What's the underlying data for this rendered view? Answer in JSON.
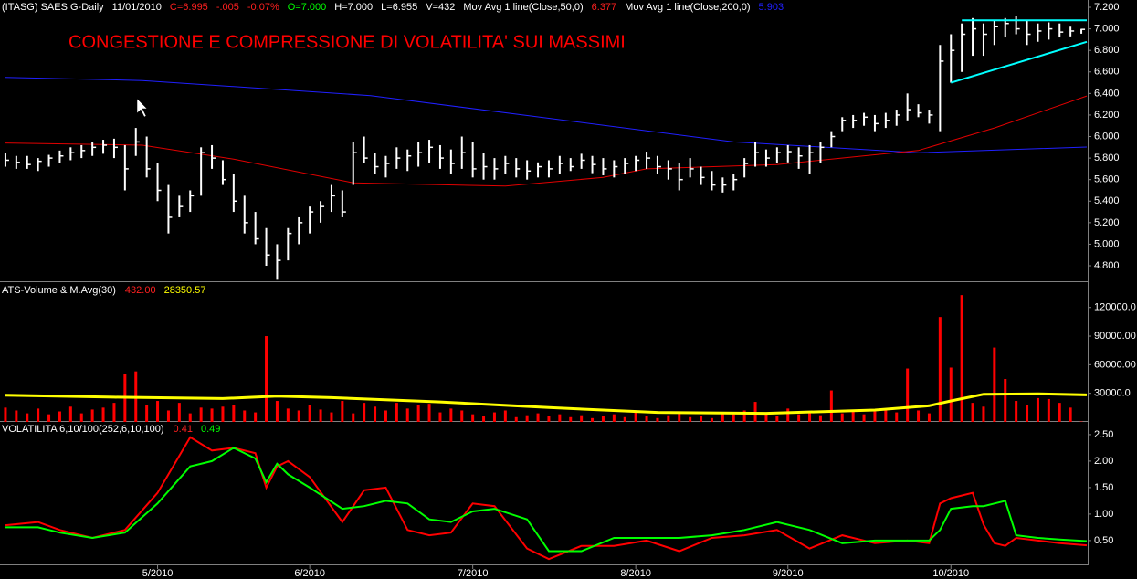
{
  "chart_data": [
    {
      "type": "ohlc",
      "info": [
        {
          "text": "(ITASG) SAES G-Daily",
          "color": "#ffffff"
        },
        {
          "text": "11/01/2010",
          "color": "#ffffff"
        },
        {
          "text": "C=6.995",
          "color": "#ff2020"
        },
        {
          "text": "-.005",
          "color": "#ff2020"
        },
        {
          "text": "-0.07%",
          "color": "#ff2020"
        },
        {
          "text": "O=7.000",
          "color": "#00ff00"
        },
        {
          "text": "H=7.000",
          "color": "#ffffff"
        },
        {
          "text": "L=6.955",
          "color": "#ffffff"
        },
        {
          "text": "V=432",
          "color": "#ffffff"
        },
        {
          "text": "Mov Avg 1 line(Close,50,0)",
          "color": "#ffffff"
        },
        {
          "text": "6.377",
          "color": "#ff2020"
        },
        {
          "text": "Mov Avg 1 line(Close,200,0)",
          "color": "#ffffff"
        },
        {
          "text": "5.903",
          "color": "#2020ff"
        }
      ],
      "annotation": {
        "text": "CONGESTIONE E COMPRESSIONE DI VOLATILITA' SUI MASSIMI",
        "color": "#ff0000"
      },
      "color": "#ffffff",
      "xlim": [
        -0.5,
        99.5
      ],
      "ylim": [
        4.656,
        7.268
      ],
      "yticks": [
        {
          "value": 4.8,
          "label": "4.800"
        },
        {
          "value": 5.0,
          "label": "5.000"
        },
        {
          "value": 5.2,
          "label": "5.200"
        },
        {
          "value": 5.4,
          "label": "5.400"
        },
        {
          "value": 5.6,
          "label": "5.600"
        },
        {
          "value": 5.8,
          "label": "5.800"
        },
        {
          "value": 6.0,
          "label": "6.000"
        },
        {
          "value": 6.2,
          "label": "6.200"
        },
        {
          "value": 6.4,
          "label": "6.400"
        },
        {
          "value": 6.6,
          "label": "6.600"
        },
        {
          "value": 6.8,
          "label": "6.800"
        },
        {
          "value": 7.0,
          "label": "7.000"
        },
        {
          "value": 7.2,
          "label": "7.200"
        }
      ],
      "high": [
        5.85,
        5.82,
        5.82,
        5.8,
        5.83,
        5.87,
        5.9,
        5.92,
        5.95,
        5.97,
        5.98,
        5.92,
        6.08,
        6.0,
        5.75,
        5.55,
        5.45,
        5.5,
        5.9,
        5.92,
        5.78,
        5.65,
        5.45,
        5.3,
        5.15,
        5.0,
        5.15,
        5.25,
        5.35,
        5.4,
        5.55,
        5.5,
        5.95,
        6.0,
        5.85,
        5.82,
        5.9,
        5.88,
        5.95,
        5.97,
        5.92,
        5.88,
        6.0,
        5.95,
        5.85,
        5.8,
        5.82,
        5.8,
        5.78,
        5.76,
        5.78,
        5.82,
        5.8,
        5.84,
        5.82,
        5.8,
        5.78,
        5.8,
        5.82,
        5.86,
        5.82,
        5.78,
        5.75,
        5.8,
        5.72,
        5.68,
        5.62,
        5.65,
        5.8,
        5.95,
        5.88,
        5.9,
        5.92,
        5.9,
        5.92,
        5.95,
        6.05,
        6.18,
        6.2,
        6.22,
        6.2,
        6.22,
        6.25,
        6.4,
        6.3,
        6.25,
        6.85,
        6.95,
        7.05,
        7.1,
        7.05,
        7.08,
        7.1,
        7.12,
        7.08,
        7.05,
        7.06,
        7.05,
        7.02,
        7.0
      ],
      "low": [
        5.72,
        5.7,
        5.7,
        5.68,
        5.72,
        5.75,
        5.78,
        5.8,
        5.82,
        5.84,
        5.8,
        5.5,
        5.82,
        5.62,
        5.4,
        5.1,
        5.25,
        5.3,
        5.45,
        5.7,
        5.55,
        5.3,
        5.1,
        5.0,
        4.8,
        4.67,
        4.85,
        5.0,
        5.1,
        5.2,
        5.3,
        5.25,
        5.55,
        5.75,
        5.65,
        5.62,
        5.7,
        5.68,
        5.72,
        5.75,
        5.7,
        5.65,
        5.7,
        5.62,
        5.6,
        5.6,
        5.65,
        5.62,
        5.6,
        5.62,
        5.62,
        5.65,
        5.68,
        5.7,
        5.66,
        5.64,
        5.62,
        5.65,
        5.68,
        5.7,
        5.65,
        5.6,
        5.5,
        5.62,
        5.55,
        5.5,
        5.48,
        5.5,
        5.62,
        5.72,
        5.72,
        5.75,
        5.76,
        5.7,
        5.65,
        5.75,
        5.9,
        6.05,
        6.08,
        6.1,
        6.05,
        6.08,
        6.1,
        6.15,
        6.18,
        6.12,
        6.05,
        6.5,
        6.6,
        6.75,
        6.75,
        6.85,
        6.92,
        6.95,
        6.85,
        6.88,
        6.9,
        6.92,
        6.93,
        6.955
      ],
      "close": [
        5.78,
        5.76,
        5.74,
        5.77,
        5.8,
        5.82,
        5.85,
        5.87,
        5.9,
        5.92,
        5.9,
        5.7,
        5.95,
        5.7,
        5.5,
        5.25,
        5.35,
        5.45,
        5.85,
        5.8,
        5.6,
        5.4,
        5.2,
        5.05,
        4.9,
        4.85,
        5.1,
        5.2,
        5.3,
        5.35,
        5.45,
        5.3,
        5.85,
        5.8,
        5.72,
        5.75,
        5.8,
        5.82,
        5.85,
        5.9,
        5.8,
        5.75,
        5.85,
        5.7,
        5.72,
        5.7,
        5.75,
        5.7,
        5.68,
        5.72,
        5.7,
        5.75,
        5.72,
        5.78,
        5.74,
        5.7,
        5.72,
        5.75,
        5.78,
        5.8,
        5.72,
        5.7,
        5.6,
        5.7,
        5.62,
        5.55,
        5.55,
        5.6,
        5.75,
        5.85,
        5.8,
        5.85,
        5.86,
        5.82,
        5.85,
        5.9,
        6.0,
        6.15,
        6.15,
        6.18,
        6.12,
        6.15,
        6.2,
        6.25,
        6.22,
        6.2,
        6.7,
        6.8,
        6.95,
        7.0,
        6.95,
        7.02,
        7.05,
        7.0,
        6.95,
        6.98,
        7.0,
        6.97,
        6.98,
        6.995
      ],
      "series": [
        {
          "color": "#2020ff",
          "x": [
            0,
            12.6,
            33.6,
            50,
            67,
            84,
            99.5
          ],
          "values": [
            6.55,
            6.52,
            6.38,
            6.17,
            5.95,
            5.85,
            5.903
          ]
        },
        {
          "color": "#e00000",
          "x": [
            0,
            12.6,
            21,
            32,
            46,
            55,
            59,
            71,
            84,
            91,
            99.5
          ],
          "values": [
            5.94,
            5.92,
            5.79,
            5.57,
            5.54,
            5.62,
            5.7,
            5.74,
            5.87,
            6.08,
            6.377
          ]
        }
      ],
      "trendlines": [
        {
          "color": "#00ffff",
          "x": [
            88,
            99.5
          ],
          "values": [
            7.08,
            7.08
          ]
        },
        {
          "color": "#00ffff",
          "x": [
            87,
            99.5
          ],
          "values": [
            6.5,
            6.88
          ]
        }
      ]
    },
    {
      "type": "bar",
      "title": "ATS-Volume & M.Avg(30)",
      "info": [
        {
          "text": "432.00",
          "color": "#ff2020"
        },
        {
          "text": "28350.57",
          "color": "#ffff00"
        }
      ],
      "color": "#ff0000",
      "xlim": [
        -0.5,
        99.5
      ],
      "ylim": [
        0,
        145600
      ],
      "yticks": [
        {
          "value": 30000,
          "label": "30000.0"
        },
        {
          "value": 60000,
          "label": "60000.00"
        },
        {
          "value": 90000,
          "label": "90000.00"
        },
        {
          "value": 120000,
          "label": "120000.0"
        }
      ],
      "values": [
        15000,
        12000,
        9000,
        14000,
        8000,
        11000,
        16000,
        9000,
        13000,
        15000,
        20000,
        50000,
        53000,
        18000,
        22000,
        12000,
        20000,
        9000,
        15000,
        14000,
        16000,
        18000,
        12000,
        10000,
        90000,
        22000,
        14000,
        12000,
        18000,
        13000,
        10000,
        22000,
        9000,
        20000,
        16000,
        12000,
        20000,
        14000,
        18000,
        19000,
        10000,
        14000,
        12000,
        8000,
        6000,
        10000,
        12000,
        5000,
        7000,
        9000,
        6000,
        8000,
        5000,
        7000,
        4000,
        6000,
        8000,
        5000,
        10000,
        6000,
        4000,
        7000,
        9000,
        5000,
        6000,
        4000,
        10000,
        8000,
        12000,
        21000,
        9000,
        6000,
        14000,
        8000,
        10000,
        7000,
        33000,
        9000,
        12000,
        8000,
        11000,
        14000,
        10000,
        56000,
        12000,
        9000,
        110000,
        57000,
        133000,
        20000,
        16000,
        78000,
        45000,
        22000,
        18000,
        25000,
        24000,
        20000,
        15000,
        432
      ],
      "average": {
        "color": "#ffff00",
        "x": [
          0,
          10,
          20,
          25,
          30,
          40,
          50,
          60,
          70,
          80,
          85,
          87,
          90,
          95,
          99.5
        ],
        "values": [
          28000,
          26000,
          24500,
          27000,
          25500,
          21000,
          15000,
          10000,
          9000,
          12500,
          17000,
          22000,
          29000,
          29500,
          28350.57
        ]
      }
    },
    {
      "type": "line",
      "title": "VOLATILITA 6,10/100(252,6,10,100)",
      "info": [
        {
          "text": "0.41",
          "color": "#ff2020"
        },
        {
          "text": "0.49",
          "color": "#00ff00"
        }
      ],
      "xlim": [
        -0.5,
        99.5
      ],
      "ylim": [
        0.05,
        2.74
      ],
      "yticks": [
        {
          "value": 0.5,
          "label": "0.50"
        },
        {
          "value": 1.0,
          "label": "1.00"
        },
        {
          "value": 1.5,
          "label": "1.50"
        },
        {
          "value": 2.0,
          "label": "2.00"
        },
        {
          "value": 2.5,
          "label": "2.50"
        }
      ],
      "xticks": [
        {
          "value": 14,
          "label": "5/2010"
        },
        {
          "value": 28,
          "label": "6/2010"
        },
        {
          "value": 43,
          "label": "7/2010"
        },
        {
          "value": 58,
          "label": "8/2010"
        },
        {
          "value": 72,
          "label": "9/2010"
        },
        {
          "value": 87,
          "label": "10/2010"
        }
      ],
      "x": [
        0,
        3,
        5,
        8,
        11,
        14,
        17,
        19,
        21,
        23,
        24,
        25,
        26,
        28,
        31,
        33,
        35,
        37,
        39,
        41,
        43,
        45,
        48,
        50,
        53,
        56,
        59,
        62,
        65,
        68,
        71,
        74,
        77,
        80,
        83,
        85,
        86,
        87,
        89,
        90,
        91,
        92,
        93,
        95,
        97,
        99.5
      ],
      "series": [
        {
          "color": "#ff0000",
          "values": [
            0.79,
            0.85,
            0.7,
            0.55,
            0.7,
            1.4,
            2.45,
            2.2,
            2.25,
            2.15,
            1.5,
            1.9,
            2.0,
            1.7,
            0.85,
            1.45,
            1.5,
            0.7,
            0.6,
            0.65,
            1.2,
            1.15,
            0.35,
            0.15,
            0.4,
            0.4,
            0.5,
            0.3,
            0.55,
            0.6,
            0.7,
            0.35,
            0.6,
            0.45,
            0.5,
            0.45,
            1.2,
            1.3,
            1.4,
            0.8,
            0.45,
            0.4,
            0.55,
            0.5,
            0.45,
            0.41
          ]
        },
        {
          "color": "#00ff00",
          "values": [
            0.75,
            0.75,
            0.65,
            0.55,
            0.65,
            1.2,
            1.9,
            2.0,
            2.25,
            2.05,
            1.6,
            1.95,
            1.75,
            1.5,
            1.1,
            1.15,
            1.25,
            1.2,
            0.9,
            0.85,
            1.05,
            1.1,
            0.9,
            0.3,
            0.3,
            0.55,
            0.55,
            0.55,
            0.6,
            0.7,
            0.85,
            0.7,
            0.45,
            0.5,
            0.5,
            0.5,
            0.7,
            1.1,
            1.15,
            1.15,
            1.2,
            1.25,
            0.6,
            0.55,
            0.52,
            0.49
          ]
        }
      ]
    }
  ]
}
